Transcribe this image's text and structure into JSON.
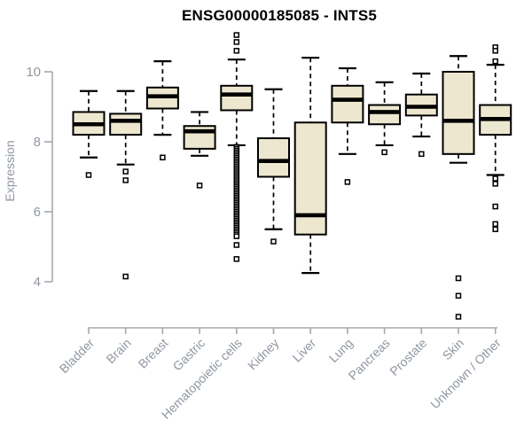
{
  "chart_data": {
    "type": "boxplot",
    "title": "ENSG00000185085 - INTS5",
    "ylabel": "Expression",
    "xlabel": "",
    "yticks": [
      4,
      6,
      8,
      10
    ],
    "ylim": [
      2.8,
      11.2
    ],
    "grid": false,
    "legend": "none",
    "colors": {
      "box_fill": "#EDE7CF",
      "box_stroke": "#000000",
      "axis_line": "#a8a8a8",
      "tick_label": "#8f97a1",
      "title_color": "#000000",
      "background": "#ffffff"
    },
    "categories": [
      "Bladder",
      "Brain",
      "Breast",
      "Gastric",
      "Hematopoietic cells",
      "Kidney",
      "Liver",
      "Lung",
      "Pancreas",
      "Prostate",
      "Skin",
      "Unknown / Other"
    ],
    "series": [
      {
        "name": "Bladder",
        "whisker_low": 7.55,
        "q1": 8.2,
        "median": 8.5,
        "q3": 8.85,
        "whisker_high": 9.45,
        "outliers": [
          7.05
        ]
      },
      {
        "name": "Brain",
        "whisker_low": 7.35,
        "q1": 8.2,
        "median": 8.6,
        "q3": 8.8,
        "whisker_high": 9.45,
        "outliers": [
          7.15,
          6.9,
          4.15
        ]
      },
      {
        "name": "Breast",
        "whisker_low": 8.2,
        "q1": 8.95,
        "median": 9.3,
        "q3": 9.55,
        "whisker_high": 10.3,
        "outliers": [
          7.55
        ]
      },
      {
        "name": "Gastric",
        "whisker_low": 7.6,
        "q1": 7.8,
        "median": 8.3,
        "q3": 8.45,
        "whisker_high": 8.85,
        "outliers": [
          6.75
        ]
      },
      {
        "name": "Hematopoietic cells",
        "whisker_low": 7.9,
        "q1": 8.9,
        "median": 9.35,
        "q3": 9.6,
        "whisker_high": 10.35,
        "outliers": [
          11.05,
          10.85,
          10.6,
          7.85,
          7.8,
          7.75,
          7.7,
          7.65,
          7.6,
          7.55,
          7.5,
          7.45,
          7.4,
          7.35,
          7.3,
          7.25,
          7.2,
          7.15,
          7.1,
          7.05,
          7.0,
          6.95,
          6.9,
          6.85,
          6.8,
          6.75,
          6.7,
          6.65,
          6.6,
          6.55,
          6.5,
          6.45,
          6.4,
          6.35,
          6.3,
          6.25,
          6.2,
          6.15,
          6.1,
          6.05,
          6.0,
          5.95,
          5.9,
          5.85,
          5.8,
          5.75,
          5.7,
          5.65,
          5.6,
          5.55,
          5.5,
          5.45,
          5.4,
          5.35,
          5.3,
          5.05,
          4.65
        ]
      },
      {
        "name": "Kidney",
        "whisker_low": 5.5,
        "q1": 7.0,
        "median": 7.45,
        "q3": 8.1,
        "whisker_high": 9.5,
        "outliers": [
          5.15
        ]
      },
      {
        "name": "Liver",
        "whisker_low": 4.25,
        "q1": 5.35,
        "median": 5.9,
        "q3": 8.55,
        "whisker_high": 10.4,
        "outliers": []
      },
      {
        "name": "Lung",
        "whisker_low": 7.65,
        "q1": 8.55,
        "median": 9.2,
        "q3": 9.6,
        "whisker_high": 10.1,
        "outliers": [
          6.85
        ]
      },
      {
        "name": "Pancreas",
        "whisker_low": 7.9,
        "q1": 8.5,
        "median": 8.85,
        "q3": 9.05,
        "whisker_high": 9.7,
        "outliers": [
          7.7
        ]
      },
      {
        "name": "Prostate",
        "whisker_low": 8.15,
        "q1": 8.75,
        "median": 9.0,
        "q3": 9.35,
        "whisker_high": 9.95,
        "outliers": [
          7.65
        ]
      },
      {
        "name": "Skin",
        "whisker_low": 7.4,
        "q1": 7.65,
        "median": 8.6,
        "q3": 10.0,
        "whisker_high": 10.45,
        "outliers": [
          4.1,
          3.6,
          3.0
        ]
      },
      {
        "name": "Unknown / Other",
        "whisker_low": 7.05,
        "q1": 8.2,
        "median": 8.65,
        "q3": 9.05,
        "whisker_high": 10.2,
        "outliers": [
          10.7,
          10.6,
          10.3,
          6.95,
          6.8,
          6.15,
          5.65,
          5.5
        ]
      }
    ]
  }
}
